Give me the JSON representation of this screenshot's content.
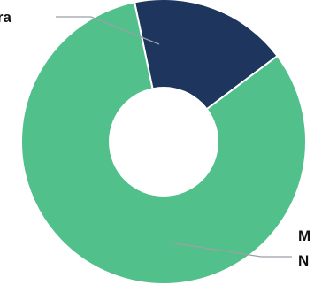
{
  "chart_data": {
    "type": "pie",
    "variant": "donut",
    "slices": [
      {
        "label": "ra",
        "value": 18,
        "color": "#1e365e"
      },
      {
        "label": "M\nN",
        "value": 82,
        "color": "#52c08a"
      }
    ],
    "title": "",
    "legend": "none",
    "grid": false
  },
  "colors": {
    "background": "#ffffff",
    "leader_line": "#9aa0a6",
    "label_text": "#111111"
  }
}
